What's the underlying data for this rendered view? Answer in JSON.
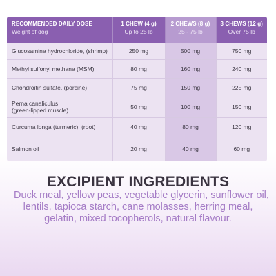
{
  "dosage_table": {
    "header": {
      "col0_title": "RECOMMENDED DAILY DOSE",
      "col0_sub": "Weight of dog",
      "col1_title": "1 CHEW (4 g)",
      "col1_sub": "Up to 25 lb",
      "col2_title": "2 CHEWS (8 g)",
      "col2_sub": "25 - 75 lb",
      "col3_title": "3 CHEWS (12 g)",
      "col3_sub": "Over 75 lb"
    },
    "rows": [
      {
        "name": [
          "Glucosamine hydrochloride, (shrimp)"
        ],
        "v1": "250 mg",
        "v2": "500 mg",
        "v3": "750 mg"
      },
      {
        "name": [
          "Methyl sulfonyl methane (MSM)"
        ],
        "v1": "80 mg",
        "v2": "160 mg",
        "v3": "240 mg"
      },
      {
        "name": [
          "Chondroitin sulfate, (porcine)"
        ],
        "v1": "75 mg",
        "v2": "150 mg",
        "v3": "225 mg"
      },
      {
        "name": [
          "Perna canaliculus",
          "(green-lipped muscle)"
        ],
        "v1": "50 mg",
        "v2": "100 mg",
        "v3": "150 mg"
      },
      {
        "name": [
          "Curcuma longa (turmeric), (root)"
        ],
        "v1": "40 mg",
        "v2": "80 mg",
        "v3": "120 mg"
      },
      {
        "name": [
          "Salmon oil"
        ],
        "v1": "20 mg",
        "v2": "40 mg",
        "v3": "60 mg"
      }
    ]
  },
  "excipient": {
    "title": "EXCIPIENT INGREDIENTS",
    "lines": [
      "Duck meal, yellow peas, vegetable glycerin, sunflower oil,",
      "lentils, tapioca starch, cane molasses, herring meal,",
      "gelatin, mixed tocopherols, natural flavour."
    ]
  },
  "colors": {
    "header_purple": "#8a5fb0",
    "header_highlight": "#b79bd0",
    "body_lavender": "#ece3f2",
    "highlight_column": "#d9c8e6",
    "excipient_text": "#a57cc6"
  }
}
